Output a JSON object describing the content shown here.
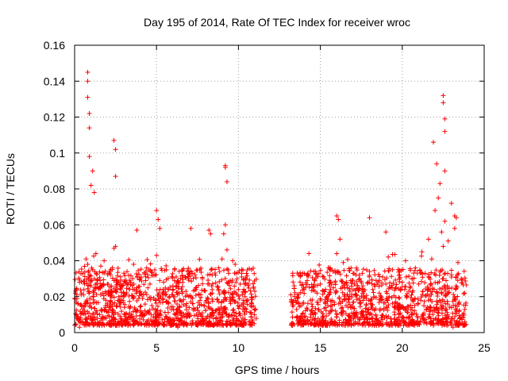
{
  "chart_data": {
    "type": "scatter",
    "title": "Day 195 of 2014, Rate Of TEC Index for receiver wroc",
    "xlabel": "GPS time / hours",
    "ylabel": "ROTI / TECUs",
    "xlim": [
      0,
      25
    ],
    "ylim": [
      0,
      0.16
    ],
    "xticks": [
      0,
      5,
      10,
      15,
      20,
      25
    ],
    "yticks": [
      0,
      0.02,
      0.04,
      0.06,
      0.08,
      0.1,
      0.12,
      0.14,
      0.16
    ],
    "xtick_labels": [
      "0",
      "5",
      "10",
      "15",
      "20",
      "25"
    ],
    "ytick_labels": [
      "0",
      "0.02",
      "0.04",
      "0.06",
      "0.08",
      "0.1",
      "0.12",
      "0.14",
      "0.16"
    ],
    "grid": true,
    "marker": "+",
    "color": "#ff0000",
    "gap": [
      11.1,
      13.2
    ],
    "series": [
      {
        "name": "ROTI",
        "x": [
          0.0,
          0.1,
          0.2,
          0.3,
          0.4,
          0.5,
          0.6,
          0.7,
          0.8,
          0.9,
          1.0,
          1.1,
          1.2,
          1.3,
          1.4,
          1.5,
          1.6,
          1.7,
          1.8,
          1.9,
          2.0,
          2.1,
          2.2,
          2.3,
          2.4,
          2.5,
          2.6,
          2.7,
          2.8,
          2.9,
          3.0,
          3.2,
          3.4,
          3.6,
          3.8,
          4.0,
          4.2,
          4.4,
          4.6,
          4.8,
          5.0,
          5.2,
          5.4,
          5.6,
          5.8,
          6.0,
          6.2,
          6.4,
          6.6,
          6.8,
          7.0,
          7.2,
          7.4,
          7.6,
          7.8,
          8.0,
          8.2,
          8.4,
          8.6,
          8.8,
          9.0,
          9.1,
          9.2,
          9.3,
          9.4,
          9.6,
          9.8,
          10.0,
          10.2,
          10.4,
          10.6,
          10.8,
          11.0,
          13.2,
          13.4,
          13.6,
          13.8,
          14.0,
          14.2,
          14.4,
          14.6,
          14.8,
          15.0,
          15.2,
          15.4,
          15.6,
          15.8,
          16.0,
          16.2,
          16.4,
          16.6,
          16.8,
          17.0,
          17.2,
          17.4,
          17.6,
          17.8,
          18.0,
          18.2,
          18.4,
          18.6,
          18.8,
          19.0,
          19.2,
          19.4,
          19.6,
          19.8,
          20.0,
          20.2,
          20.4,
          20.6,
          20.8,
          21.0,
          21.2,
          21.4,
          21.6,
          21.8,
          22.0,
          22.2,
          22.4,
          22.5,
          22.6,
          22.8,
          23.0,
          23.2,
          23.4,
          23.6,
          23.8,
          0.8,
          0.8,
          0.8,
          0.9,
          0.9,
          0.9,
          2.4,
          2.5,
          2.5,
          9.2,
          9.2,
          9.3,
          22.5,
          22.5,
          22.6,
          22.6,
          22.6,
          21.9,
          22.1,
          22.3,
          23.2,
          23.3,
          5.0,
          5.1,
          5.2,
          1.0,
          1.1,
          1.2,
          16.0,
          16.1,
          18.0,
          19.0,
          8.2,
          8.3,
          7.1,
          3.8,
          0.3,
          0.5,
          1.5,
          1.7,
          2.1,
          2.9,
          3.3,
          4.1,
          4.5,
          4.9,
          5.5,
          5.9,
          6.3,
          6.7,
          7.5,
          7.9,
          8.7,
          9.5,
          9.9,
          10.3,
          10.7,
          13.3,
          13.7,
          14.1,
          14.5,
          14.9,
          15.3,
          15.7,
          16.5,
          16.9,
          17.3,
          17.7,
          18.3,
          18.7,
          19.3,
          19.7,
          20.3,
          20.7,
          21.1,
          21.5,
          21.9,
          22.7,
          23.1,
          23.5,
          23.7
        ],
        "y": [
          0.019,
          0.024,
          0.016,
          0.028,
          0.021,
          0.033,
          0.027,
          0.041,
          0.038,
          0.031,
          0.026,
          0.035,
          0.03,
          0.044,
          0.029,
          0.025,
          0.037,
          0.022,
          0.04,
          0.018,
          0.027,
          0.033,
          0.023,
          0.036,
          0.029,
          0.048,
          0.024,
          0.02,
          0.031,
          0.026,
          0.022,
          0.034,
          0.028,
          0.038,
          0.025,
          0.03,
          0.021,
          0.036,
          0.027,
          0.032,
          0.043,
          0.029,
          0.024,
          0.035,
          0.02,
          0.026,
          0.031,
          0.018,
          0.028,
          0.023,
          0.033,
          0.019,
          0.025,
          0.021,
          0.03,
          0.017,
          0.027,
          0.022,
          0.032,
          0.036,
          0.041,
          0.055,
          0.06,
          0.046,
          0.033,
          0.028,
          0.038,
          0.024,
          0.031,
          0.02,
          0.027,
          0.035,
          0.023,
          0.021,
          0.026,
          0.019,
          0.032,
          0.024,
          0.029,
          0.018,
          0.034,
          0.022,
          0.027,
          0.031,
          0.02,
          0.036,
          0.025,
          0.044,
          0.052,
          0.039,
          0.028,
          0.023,
          0.033,
          0.021,
          0.03,
          0.026,
          0.019,
          0.034,
          0.024,
          0.029,
          0.022,
          0.031,
          0.027,
          0.02,
          0.035,
          0.025,
          0.032,
          0.028,
          0.04,
          0.023,
          0.03,
          0.036,
          0.027,
          0.045,
          0.033,
          0.052,
          0.041,
          0.068,
          0.075,
          0.056,
          0.048,
          0.062,
          0.051,
          0.072,
          0.058,
          0.039,
          0.03,
          0.022,
          0.145,
          0.14,
          0.131,
          0.122,
          0.114,
          0.098,
          0.107,
          0.102,
          0.087,
          0.093,
          0.092,
          0.084,
          0.132,
          0.128,
          0.119,
          0.112,
          0.09,
          0.106,
          0.094,
          0.083,
          0.065,
          0.064,
          0.068,
          0.063,
          0.058,
          0.082,
          0.09,
          0.078,
          0.065,
          0.063,
          0.064,
          0.056,
          0.057,
          0.055,
          0.058,
          0.057,
          0.003,
          0.006,
          0.004,
          0.007,
          0.005,
          0.004,
          0.006,
          0.005,
          0.007,
          0.004,
          0.006,
          0.005,
          0.003,
          0.006,
          0.004,
          0.007,
          0.005,
          0.006,
          0.004,
          0.005,
          0.006,
          0.004,
          0.006,
          0.005,
          0.007,
          0.004,
          0.005,
          0.006,
          0.004,
          0.007,
          0.005,
          0.006,
          0.004,
          0.005,
          0.006,
          0.007,
          0.004,
          0.005,
          0.006,
          0.005,
          0.004,
          0.006,
          0.003,
          0.005,
          0.004
        ]
      }
    ]
  }
}
